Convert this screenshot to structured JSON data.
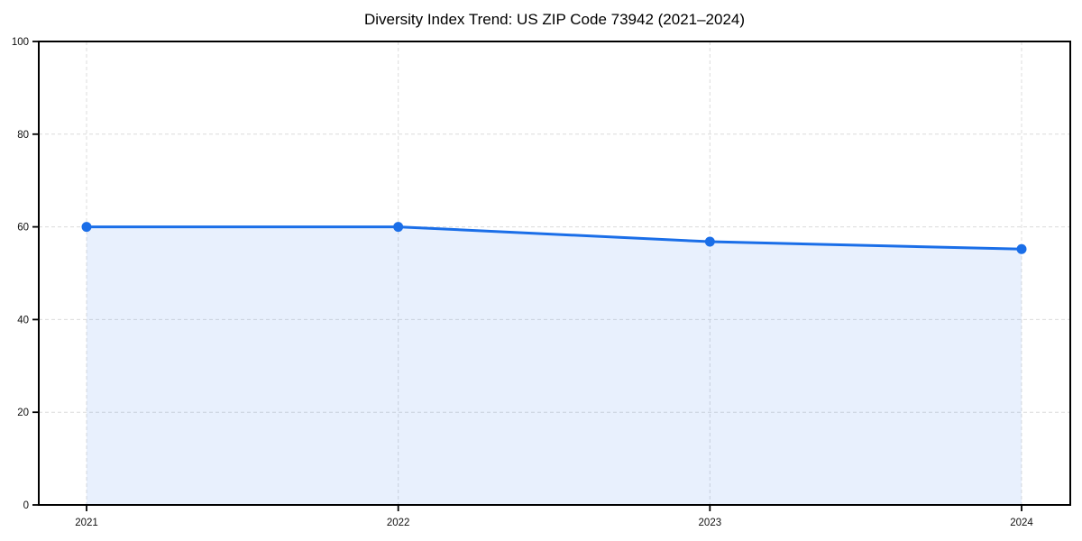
{
  "chart_data": {
    "type": "line",
    "title": "Diversity Index Trend: US ZIP Code 73942 (2021–2024)",
    "x": [
      "2021",
      "2022",
      "2023",
      "2024"
    ],
    "series": [
      {
        "name": "Diversity Index",
        "values": [
          60,
          60,
          56.8,
          55.2
        ]
      }
    ],
    "xlabel": "",
    "ylabel": "",
    "ylim": [
      0,
      100
    ],
    "yticks": [
      0,
      20,
      40,
      60,
      80,
      100
    ],
    "grid": true,
    "grid_style": "dashed",
    "legend": "none",
    "marker": "circle",
    "area_fill": true,
    "colors": {
      "line": "#1a6ee8",
      "fill": "#1a6ee8",
      "fill_opacity": 0.1,
      "grid": "#dcdcdc",
      "axis": "#000000",
      "text": "#111111",
      "background": "#ffffff"
    }
  }
}
